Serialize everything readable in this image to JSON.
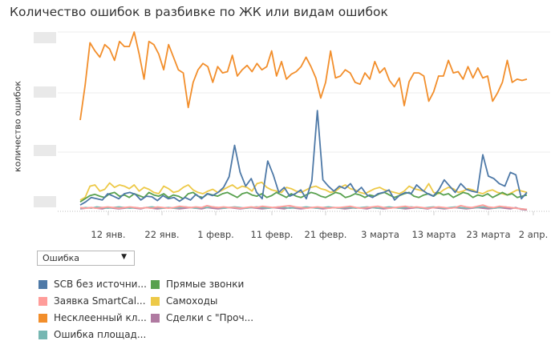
{
  "chart_data": {
    "type": "line",
    "title": "Количество ошибок в разбивке по ЖК или видам ошибок",
    "ylabel": "количество ошибок",
    "xlabel": "",
    "x_tick_labels": [
      "12 янв.",
      "22 янв.",
      "1 февр.",
      "11 февр.",
      "21 февр.",
      "3 марта",
      "13 марта",
      "23 марта",
      "2 апр."
    ],
    "x_start": "2 янв.",
    "y_tick_labels_hidden": true,
    "ylim": [
      0,
      285
    ],
    "grid": true,
    "legend_position": "bottom-left",
    "series": [
      {
        "name": "SCB без источни...",
        "color": "#4e79a7",
        "values": [
          10,
          15,
          22,
          20,
          18,
          28,
          24,
          20,
          28,
          30,
          27,
          18,
          24,
          23,
          17,
          25,
          20,
          22,
          16,
          22,
          18,
          27,
          20,
          28,
          25,
          30,
          38,
          55,
          105,
          62,
          40,
          52,
          30,
          20,
          80,
          58,
          30,
          38,
          24,
          28,
          34,
          20,
          48,
          160,
          50,
          40,
          32,
          40,
          36,
          44,
          30,
          38,
          26,
          22,
          28,
          30,
          34,
          18,
          26,
          30,
          28,
          42,
          34,
          28,
          24,
          34,
          50,
          40,
          30,
          44,
          35,
          32,
          30,
          90,
          56,
          52,
          44,
          40,
          62,
          58,
          20,
          30
        ]
      },
      {
        "name": "Заявка SmartCal...",
        "color": "#ff9d9a",
        "values": [
          6,
          5,
          6,
          5,
          6,
          7,
          6,
          5,
          6,
          7,
          6,
          5,
          6,
          5,
          7,
          6,
          5,
          6,
          8,
          7,
          6,
          7,
          6,
          9,
          7,
          6,
          7,
          6,
          6,
          5,
          6,
          7,
          6,
          8,
          7,
          6,
          7,
          8,
          9,
          7,
          6,
          5,
          6,
          7,
          6,
          5,
          6,
          6,
          7,
          8,
          6,
          5,
          6,
          7,
          8,
          6,
          5,
          6,
          7,
          8,
          6,
          7,
          6,
          5,
          6,
          7,
          6,
          5,
          6,
          9,
          7,
          6,
          8,
          10,
          7,
          6,
          8,
          7,
          6,
          5,
          4,
          3
        ]
      },
      {
        "name": "Несклеенный кл...",
        "color": "#f28e2b",
        "values": [
          145,
          200,
          268,
          255,
          245,
          265,
          258,
          240,
          270,
          262,
          262,
          285,
          250,
          210,
          270,
          265,
          250,
          225,
          265,
          245,
          225,
          220,
          165,
          205,
          225,
          235,
          230,
          205,
          230,
          220,
          222,
          248,
          215,
          225,
          232,
          222,
          235,
          225,
          230,
          255,
          215,
          238,
          210,
          218,
          222,
          230,
          245,
          230,
          212,
          180,
          205,
          255,
          212,
          215,
          225,
          220,
          205,
          202,
          220,
          210,
          238,
          220,
          228,
          208,
          198,
          212,
          168,
          206,
          220,
          220,
          215,
          175,
          190,
          215,
          215,
          240,
          220,
          222,
          210,
          230,
          212,
          228,
          212,
          215,
          175,
          188,
          205,
          240,
          205,
          210,
          208,
          210
        ]
      },
      {
        "name": "Ошибка площад...",
        "color": "#76b7b2",
        "values": [
          5,
          6,
          5,
          7,
          6,
          5,
          6,
          7,
          6,
          5,
          6,
          5,
          6,
          7,
          6,
          5,
          6,
          5,
          6,
          7,
          6,
          5,
          6,
          6,
          7,
          6,
          5,
          6,
          7,
          6,
          5,
          6,
          7,
          6,
          5,
          6,
          7,
          6,
          5,
          6,
          6,
          7,
          6,
          5,
          6,
          7,
          6,
          5,
          6,
          6,
          5,
          6,
          7,
          6,
          5,
          6,
          7,
          6,
          5,
          6,
          7,
          6,
          5,
          6,
          7,
          6,
          5,
          6,
          7,
          6,
          5,
          6,
          6,
          7,
          6,
          5,
          6,
          7,
          6,
          5,
          4,
          3
        ]
      },
      {
        "name": "Прямые звонки",
        "color": "#59a14f",
        "values": [
          15,
          20,
          25,
          27,
          24,
          22,
          28,
          30,
          24,
          26,
          22,
          28,
          25,
          22,
          30,
          26,
          24,
          28,
          22,
          26,
          24,
          20,
          28,
          30,
          24,
          22,
          28,
          26,
          24,
          28,
          30,
          26,
          22,
          28,
          30,
          26,
          24,
          28,
          22,
          25,
          30,
          26,
          22,
          28,
          24,
          22,
          26,
          30,
          28,
          24,
          22,
          26,
          30,
          28,
          22,
          24,
          28,
          26,
          22,
          26,
          24,
          28,
          30,
          26,
          22,
          25,
          28,
          30,
          24,
          22,
          26,
          28,
          24,
          30,
          26,
          28,
          22,
          26,
          30,
          28,
          22,
          26,
          24,
          28,
          22,
          26,
          30,
          26,
          28,
          22,
          24,
          26
        ]
      },
      {
        "name": "Самоходы",
        "color": "#edc948",
        "values": [
          18,
          22,
          40,
          42,
          32,
          35,
          45,
          38,
          42,
          40,
          36,
          42,
          32,
          38,
          35,
          30,
          28,
          40,
          36,
          30,
          32,
          38,
          42,
          34,
          30,
          28,
          32,
          35,
          30,
          34,
          38,
          42,
          36,
          40,
          38,
          32,
          44,
          46,
          38,
          34,
          32,
          30,
          38,
          36,
          32,
          30,
          34,
          38,
          40,
          36,
          34,
          30,
          32,
          38,
          42,
          36,
          34,
          30,
          28,
          32,
          36,
          38,
          34,
          32,
          30,
          28,
          32,
          40,
          36,
          34,
          32,
          44,
          30,
          28,
          34,
          38,
          36,
          30,
          32,
          36,
          34,
          30,
          28,
          32,
          34,
          30,
          28,
          26,
          30,
          34,
          32,
          30
        ]
      },
      {
        "name": "Сделки с \"Проч...",
        "color": "#b07aa1",
        "values": [
          4,
          5,
          6,
          5,
          4,
          6,
          5,
          4,
          5,
          6,
          5,
          4,
          6,
          5,
          4,
          5,
          6,
          5,
          4,
          5,
          6,
          5,
          4,
          6,
          5,
          4,
          5,
          6,
          5,
          4,
          5,
          6,
          5,
          4,
          5,
          6,
          5,
          4,
          6,
          5,
          4,
          5,
          6,
          5,
          4,
          5,
          6,
          5,
          4,
          5,
          6,
          5,
          4,
          6,
          5,
          4,
          5,
          6,
          5,
          4,
          5,
          6,
          5,
          4,
          6,
          5,
          4,
          5,
          6,
          5,
          4,
          5,
          6,
          5,
          4,
          5,
          6,
          5,
          4,
          6,
          3,
          2
        ]
      }
    ]
  },
  "filter": {
    "label": "Ошибка",
    "caret": "▼"
  },
  "legend": [
    {
      "label": "SCB без источни...",
      "color": "#4e79a7"
    },
    {
      "label": "Прямые звонки",
      "color": "#59a14f"
    },
    {
      "label": "Заявка SmartCal...",
      "color": "#ff9d9a"
    },
    {
      "label": "Самоходы",
      "color": "#edc948"
    },
    {
      "label": "Несклеенный кл...",
      "color": "#f28e2b"
    },
    {
      "label": "Сделки с \"Проч...",
      "color": "#b07aa1"
    },
    {
      "label": "Ошибка площад...",
      "color": "#76b7b2"
    }
  ]
}
